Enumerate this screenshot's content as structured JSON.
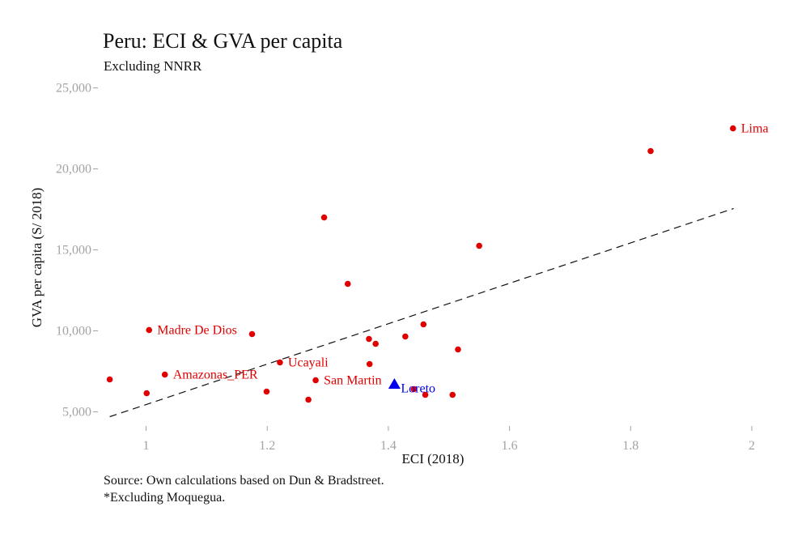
{
  "chart_data": {
    "type": "scatter",
    "title": "Peru: ECI & GVA per capita",
    "subtitle": "Excluding NNRR",
    "xlabel": "ECI (2018)",
    "ylabel": "GVA per capita (S/ 2018)",
    "caption_lines": [
      "Source: Own calculations based on Dun & Bradstreet.",
      "*Excluding Moquegua."
    ],
    "xlim": [
      0.92,
      2.0
    ],
    "ylim": [
      4500,
      25000
    ],
    "x_ticks": [
      1,
      1.2,
      1.4,
      1.6,
      1.8,
      2
    ],
    "x_tick_labels": [
      "1",
      "1.2",
      "1.4",
      "1.6",
      "1.8",
      "2"
    ],
    "y_ticks": [
      5000,
      10000,
      15000,
      20000,
      25000
    ],
    "y_tick_labels": [
      "5,000",
      "10,000",
      "15,000",
      "20,000",
      "25,000"
    ],
    "grid": false,
    "colors": {
      "points": "#e00000",
      "highlight": "#0000ee",
      "trend": "#111111",
      "ticks": "#a3a3a3"
    },
    "points": [
      {
        "x": 0.94,
        "y": 7000,
        "label": ""
      },
      {
        "x": 1.001,
        "y": 6150,
        "label": ""
      },
      {
        "x": 1.005,
        "y": 10050,
        "label": "Madre De Dios"
      },
      {
        "x": 1.031,
        "y": 7300,
        "label": "Amazonas_PER"
      },
      {
        "x": 1.175,
        "y": 9800,
        "label": ""
      },
      {
        "x": 1.199,
        "y": 6250,
        "label": ""
      },
      {
        "x": 1.221,
        "y": 8050,
        "label": "Ucayali"
      },
      {
        "x": 1.268,
        "y": 5750,
        "label": ""
      },
      {
        "x": 1.28,
        "y": 6950,
        "label": "San Martin"
      },
      {
        "x": 1.294,
        "y": 17000,
        "label": ""
      },
      {
        "x": 1.333,
        "y": 12900,
        "label": ""
      },
      {
        "x": 1.368,
        "y": 9500,
        "label": ""
      },
      {
        "x": 1.369,
        "y": 7950,
        "label": ""
      },
      {
        "x": 1.379,
        "y": 9200,
        "label": ""
      },
      {
        "x": 1.428,
        "y": 9650,
        "label": ""
      },
      {
        "x": 1.442,
        "y": 6400,
        "label": ""
      },
      {
        "x": 1.458,
        "y": 10400,
        "label": ""
      },
      {
        "x": 1.461,
        "y": 6050,
        "label": ""
      },
      {
        "x": 1.506,
        "y": 6050,
        "label": ""
      },
      {
        "x": 1.515,
        "y": 8850,
        "label": ""
      },
      {
        "x": 1.55,
        "y": 15250,
        "label": ""
      },
      {
        "x": 1.833,
        "y": 21100,
        "label": ""
      },
      {
        "x": 1.969,
        "y": 22500,
        "label": "Lima"
      }
    ],
    "highlight": {
      "x": 1.41,
      "y": 6700,
      "label": "Loreto",
      "marker": "triangle"
    },
    "trendline": {
      "style": "dashed",
      "x": [
        0.94,
        1.97
      ],
      "y": [
        4700,
        17550
      ]
    }
  }
}
